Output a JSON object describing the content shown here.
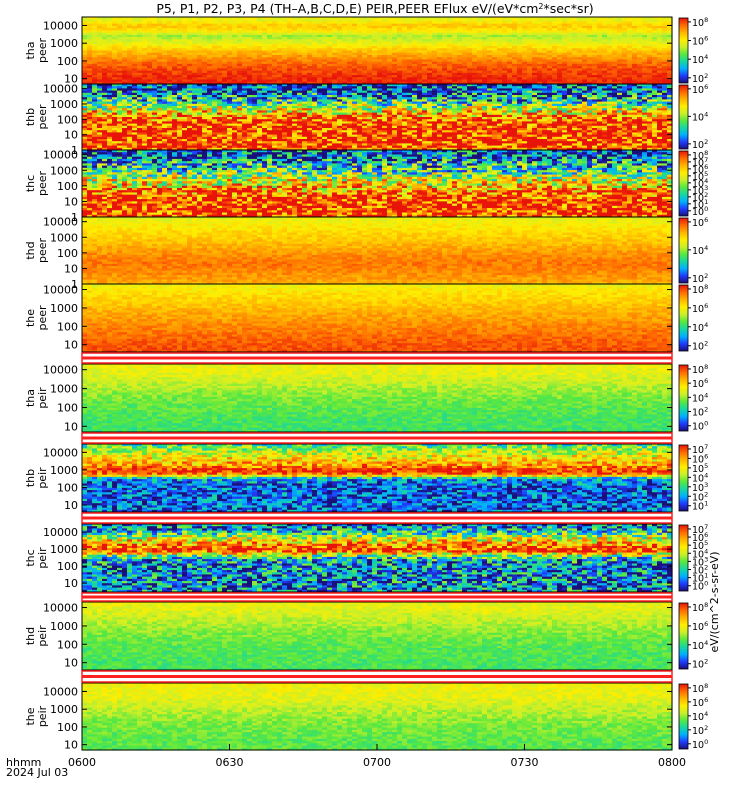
{
  "title_parts": {
    "main": "P5, P1, P2, P3, P4 (TH–A,B,C,D,E) PEIR,PEER EFlux eV/(eV*cm",
    "sup": "2",
    "tail": "*sec*sr)"
  },
  "x_axis": {
    "label_lines": [
      "hhmm",
      "2024 Jul 03"
    ],
    "ticks": [
      "0600",
      "0630",
      "0700",
      "0730",
      "0800"
    ]
  },
  "colorbar_unit_label": "eV/(cm^2-s-sr-eV)",
  "colors": {
    "colorscale": [
      "#1b0f7a",
      "#1f3cff",
      "#00b0ff",
      "#18d7a0",
      "#58e840",
      "#c9ef2a",
      "#ffee00",
      "#ffb300",
      "#ff6a00",
      "#e8140a"
    ],
    "separator": "#ff2020"
  },
  "chart_data": [
    {
      "type": "heatmap",
      "probe": "tha",
      "species": "peer",
      "y_scale": "log",
      "ylim": [
        5,
        30000
      ],
      "y_ticks": [
        "10000",
        "1000",
        "100",
        "10"
      ],
      "colorbar_ticks": [
        "10^8",
        "10^6",
        "10^4",
        "10^2"
      ],
      "colorbar_exp": [
        "8",
        "6",
        "4",
        "2"
      ],
      "profile": [
        {
          "logE": 4.3,
          "c": 0.62
        },
        {
          "logE": 4.0,
          "c": 0.74
        },
        {
          "logE": 3.7,
          "c": 0.68
        },
        {
          "logE": 3.4,
          "c": 0.52
        },
        {
          "logE": 3.0,
          "c": 0.62
        },
        {
          "logE": 2.6,
          "c": 0.74
        },
        {
          "logE": 2.2,
          "c": 0.82
        },
        {
          "logE": 1.8,
          "c": 0.9
        },
        {
          "logE": 1.4,
          "c": 0.94
        },
        {
          "logE": 1.0,
          "c": 0.97
        },
        {
          "logE": 0.75,
          "c": 0.98
        }
      ],
      "noise_level": 0.05
    },
    {
      "type": "heatmap",
      "probe": "thb",
      "species": "peer",
      "y_scale": "log",
      "ylim": [
        1,
        20000
      ],
      "y_ticks": [
        "10000",
        "1000",
        "100",
        "10",
        "1"
      ],
      "colorbar_ticks": [
        "10^6",
        "10^4",
        "10^2"
      ],
      "colorbar_exp": [
        "6",
        "4",
        "2"
      ],
      "profile": [
        {
          "logE": 4.3,
          "c": 0.05
        },
        {
          "logE": 3.9,
          "c": 0.15
        },
        {
          "logE": 3.4,
          "c": 0.25
        },
        {
          "logE": 3.0,
          "c": 0.42
        },
        {
          "logE": 2.6,
          "c": 0.62
        },
        {
          "logE": 2.2,
          "c": 0.82
        },
        {
          "logE": 1.8,
          "c": 0.95
        },
        {
          "logE": 1.0,
          "c": 0.98
        },
        {
          "logE": 0.0,
          "c": 0.97
        }
      ],
      "noise_level": 0.35
    },
    {
      "type": "heatmap",
      "probe": "thc",
      "species": "peer",
      "y_scale": "log",
      "ylim": [
        1,
        20000
      ],
      "y_ticks": [
        "10000",
        "1000",
        "100",
        "10",
        "1"
      ],
      "colorbar_ticks": [
        "10^8",
        "10^7",
        "10^6",
        "10^5",
        "10^4",
        "10^3",
        "10^2",
        "10^1",
        "10^0"
      ],
      "colorbar_exp": [
        "8",
        "7",
        "6",
        "5",
        "4",
        "3",
        "2",
        "1",
        "0"
      ],
      "profile": [
        {
          "logE": 4.3,
          "c": 0.1
        },
        {
          "logE": 3.8,
          "c": 0.15
        },
        {
          "logE": 3.3,
          "c": 0.3
        },
        {
          "logE": 2.8,
          "c": 0.45
        },
        {
          "logE": 2.4,
          "c": 0.6
        },
        {
          "logE": 2.0,
          "c": 0.7
        },
        {
          "logE": 1.6,
          "c": 0.85
        },
        {
          "logE": 1.2,
          "c": 0.95
        },
        {
          "logE": 0.6,
          "c": 0.99
        },
        {
          "logE": 0.0,
          "c": 0.97
        }
      ],
      "noise_level": 0.35
    },
    {
      "type": "heatmap",
      "probe": "thd",
      "species": "peer",
      "y_scale": "log",
      "ylim": [
        1,
        20000
      ],
      "y_ticks": [
        "10000",
        "1000",
        "100",
        "10",
        "1"
      ],
      "colorbar_ticks": [
        "10^6",
        "10^4",
        "10^2"
      ],
      "colorbar_exp": [
        "6",
        "4",
        "2"
      ],
      "profile": [
        {
          "logE": 4.3,
          "c": 0.6
        },
        {
          "logE": 3.8,
          "c": 0.66
        },
        {
          "logE": 3.3,
          "c": 0.7
        },
        {
          "logE": 2.8,
          "c": 0.74
        },
        {
          "logE": 2.3,
          "c": 0.79
        },
        {
          "logE": 1.8,
          "c": 0.84
        },
        {
          "logE": 1.3,
          "c": 0.87
        },
        {
          "logE": 0.6,
          "c": 0.83
        },
        {
          "logE": 0.0,
          "c": 0.78
        }
      ],
      "noise_level": 0.05
    },
    {
      "type": "heatmap",
      "probe": "the",
      "species": "peer",
      "y_scale": "log",
      "ylim": [
        4,
        20000
      ],
      "y_ticks": [
        "10000",
        "1000",
        "100",
        "10"
      ],
      "colorbar_ticks": [
        "10^8",
        "10^6",
        "10^4",
        "10^2"
      ],
      "colorbar_exp": [
        "8",
        "6",
        "4",
        "2"
      ],
      "profile": [
        {
          "logE": 4.3,
          "c": 0.62
        },
        {
          "logE": 3.8,
          "c": 0.69
        },
        {
          "logE": 3.3,
          "c": 0.73
        },
        {
          "logE": 2.8,
          "c": 0.78
        },
        {
          "logE": 2.3,
          "c": 0.82
        },
        {
          "logE": 1.8,
          "c": 0.86
        },
        {
          "logE": 1.2,
          "c": 0.9
        },
        {
          "logE": 0.6,
          "c": 0.93
        }
      ],
      "noise_level": 0.05
    },
    {
      "type": "heatmap",
      "probe": "tha",
      "species": "peir",
      "y_scale": "log",
      "ylim": [
        5,
        20000
      ],
      "y_ticks": [
        "10000",
        "1000",
        "100",
        "10"
      ],
      "colorbar_ticks": [
        "10^8",
        "10^6",
        "10^4",
        "10^2",
        "10^0"
      ],
      "colorbar_exp": [
        "8",
        "6",
        "4",
        "2",
        "0"
      ],
      "profile": [
        {
          "logE": 4.3,
          "c": 0.63
        },
        {
          "logE": 3.8,
          "c": 0.61
        },
        {
          "logE": 3.3,
          "c": 0.56
        },
        {
          "logE": 2.8,
          "c": 0.5
        },
        {
          "logE": 2.3,
          "c": 0.46
        },
        {
          "logE": 1.8,
          "c": 0.43
        },
        {
          "logE": 1.2,
          "c": 0.41
        },
        {
          "logE": 0.7,
          "c": 0.4
        }
      ],
      "noise_level": 0.06
    },
    {
      "type": "heatmap",
      "probe": "thb",
      "species": "peir",
      "y_scale": "log",
      "ylim": [
        4,
        30000
      ],
      "y_ticks": [
        "10000",
        "1000",
        "100",
        "10"
      ],
      "colorbar_ticks": [
        "10^7",
        "10^6",
        "10^5",
        "10^4",
        "10^3",
        "10^2",
        "10^1"
      ],
      "colorbar_exp": [
        "7",
        "6",
        "5",
        "4",
        "3",
        "2",
        "1"
      ],
      "profile": [
        {
          "logE": 4.4,
          "c": 0.4
        },
        {
          "logE": 4.0,
          "c": 0.58
        },
        {
          "logE": 3.6,
          "c": 0.7
        },
        {
          "logE": 3.2,
          "c": 0.82
        },
        {
          "logE": 3.0,
          "c": 0.98
        },
        {
          "logE": 2.85,
          "c": 0.99
        },
        {
          "logE": 2.7,
          "c": 0.78
        },
        {
          "logE": 2.5,
          "c": 0.22
        },
        {
          "logE": 2.0,
          "c": 0.14
        },
        {
          "logE": 0.7,
          "c": 0.14
        }
      ],
      "noise_level": 0.2
    },
    {
      "type": "heatmap",
      "probe": "thc",
      "species": "peir",
      "y_scale": "log",
      "ylim": [
        3,
        30000
      ],
      "y_ticks": [
        "10000",
        "1000",
        "100",
        "10"
      ],
      "colorbar_ticks": [
        "10^7",
        "10^6",
        "10^5",
        "10^4",
        "10^3",
        "10^2",
        "10^1",
        "10^0"
      ],
      "colorbar_exp": [
        "7",
        "6",
        "5",
        "4",
        "3",
        "2",
        "1",
        "0"
      ],
      "profile": [
        {
          "logE": 4.4,
          "c": 0.2
        },
        {
          "logE": 4.2,
          "c": 0.2
        },
        {
          "logE": 3.7,
          "c": 0.55
        },
        {
          "logE": 3.3,
          "c": 0.8
        },
        {
          "logE": 3.0,
          "c": 0.98
        },
        {
          "logE": 2.85,
          "c": 0.95
        },
        {
          "logE": 2.7,
          "c": 0.6
        },
        {
          "logE": 2.4,
          "c": 0.25
        },
        {
          "logE": 2.0,
          "c": 0.2
        },
        {
          "logE": 0.5,
          "c": 0.2
        }
      ],
      "noise_level": 0.3
    },
    {
      "type": "heatmap",
      "probe": "thd",
      "species": "peir",
      "y_scale": "log",
      "ylim": [
        4,
        20000
      ],
      "y_ticks": [
        "10000",
        "1000",
        "100",
        "10"
      ],
      "colorbar_ticks": [
        "10^8",
        "10^6",
        "10^4",
        "10^2"
      ],
      "colorbar_exp": [
        "8",
        "6",
        "4",
        "2"
      ],
      "profile": [
        {
          "logE": 4.3,
          "c": 0.63
        },
        {
          "logE": 3.8,
          "c": 0.6
        },
        {
          "logE": 3.3,
          "c": 0.55
        },
        {
          "logE": 2.8,
          "c": 0.5
        },
        {
          "logE": 2.3,
          "c": 0.46
        },
        {
          "logE": 1.8,
          "c": 0.43
        },
        {
          "logE": 1.2,
          "c": 0.42
        },
        {
          "logE": 0.6,
          "c": 0.41
        }
      ],
      "noise_level": 0.06
    },
    {
      "type": "heatmap",
      "probe": "the",
      "species": "peir",
      "y_scale": "log",
      "ylim": [
        5,
        30000
      ],
      "y_ticks": [
        "10000",
        "1000",
        "100",
        "10"
      ],
      "colorbar_ticks": [
        "10^8",
        "10^6",
        "10^4",
        "10^2",
        "10^0"
      ],
      "colorbar_exp": [
        "8",
        "6",
        "4",
        "2",
        "0"
      ],
      "profile": [
        {
          "logE": 4.4,
          "c": 0.64
        },
        {
          "logE": 3.8,
          "c": 0.62
        },
        {
          "logE": 3.3,
          "c": 0.58
        },
        {
          "logE": 2.8,
          "c": 0.53
        },
        {
          "logE": 2.3,
          "c": 0.49
        },
        {
          "logE": 1.8,
          "c": 0.46
        },
        {
          "logE": 1.2,
          "c": 0.44
        },
        {
          "logE": 0.7,
          "c": 0.43
        }
      ],
      "noise_level": 0.06
    }
  ]
}
